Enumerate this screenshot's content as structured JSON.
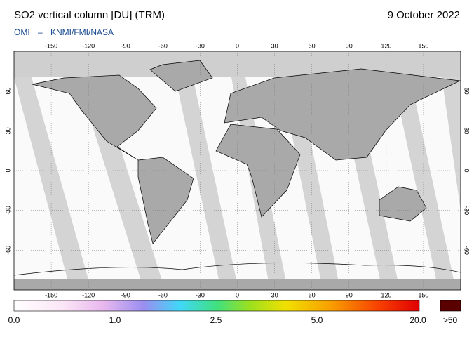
{
  "header": {
    "title": "SO2 vertical column [DU] (TRM)",
    "date": "9 October 2022",
    "subtitle_left": "OMI",
    "subtitle_right": "KNMI/FMI/NASA"
  },
  "map": {
    "lonlim": [
      -180,
      180
    ],
    "latlim": [
      -90,
      90
    ],
    "lon_ticks": [
      -150,
      -120,
      -90,
      -60,
      -30,
      0,
      30,
      60,
      90,
      120,
      150
    ],
    "lat_ticks": [
      60,
      30,
      0,
      -30,
      -60
    ]
  },
  "colorbar": {
    "labels": [
      "0.0",
      "1.0",
      "2.5",
      "5.0",
      "20.0"
    ],
    "overflow_label": ">50"
  }
}
